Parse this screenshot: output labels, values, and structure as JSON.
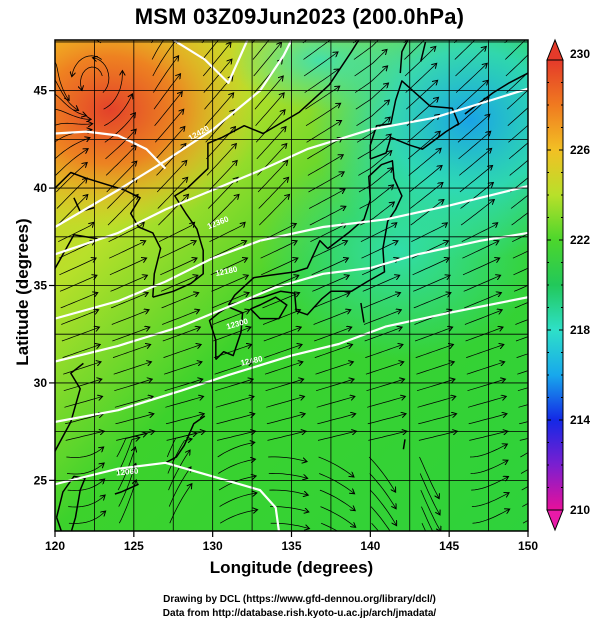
{
  "title": "MSM 03Z09Jun2023 (200.0hPa)",
  "chart_data": {
    "type": "heatmap",
    "subtype": "streamline-map",
    "xlabel": "Longitude (degrees)",
    "ylabel": "Latitude  (degrees)",
    "xlim": [
      120,
      150
    ],
    "ylim": [
      22.4,
      47.6
    ],
    "x_ticks": [
      "120",
      "125",
      "130",
      "135",
      "140",
      "145",
      "150"
    ],
    "y_ticks": [
      "25",
      "30",
      "35",
      "40",
      "45"
    ],
    "colorbar": {
      "min": 210,
      "max": 230,
      "ticks": [
        "230",
        "226",
        "222",
        "218",
        "214",
        "210"
      ],
      "colors": [
        "#e8109a",
        "#7b1fd0",
        "#1428e6",
        "#18a8ec",
        "#2ee0c8",
        "#22c85a",
        "#4cd62c",
        "#b8e02a",
        "#f2c024",
        "#f07a20",
        "#e43a2a"
      ]
    },
    "contour_labels": [
      "12060",
      "12180",
      "12300",
      "12420",
      "12360",
      "12480"
    ],
    "contour_levels": [
      12060,
      12120,
      12180,
      12240,
      12300,
      12360,
      12420,
      12480
    ],
    "grid": true
  },
  "credits": {
    "line1": "Drawing by DCL (https://www.gfd-dennou.org/library/dcl/)",
    "line2": "Data from http://database.rish.kyoto-u.ac.jp/arch/jmadata/"
  }
}
